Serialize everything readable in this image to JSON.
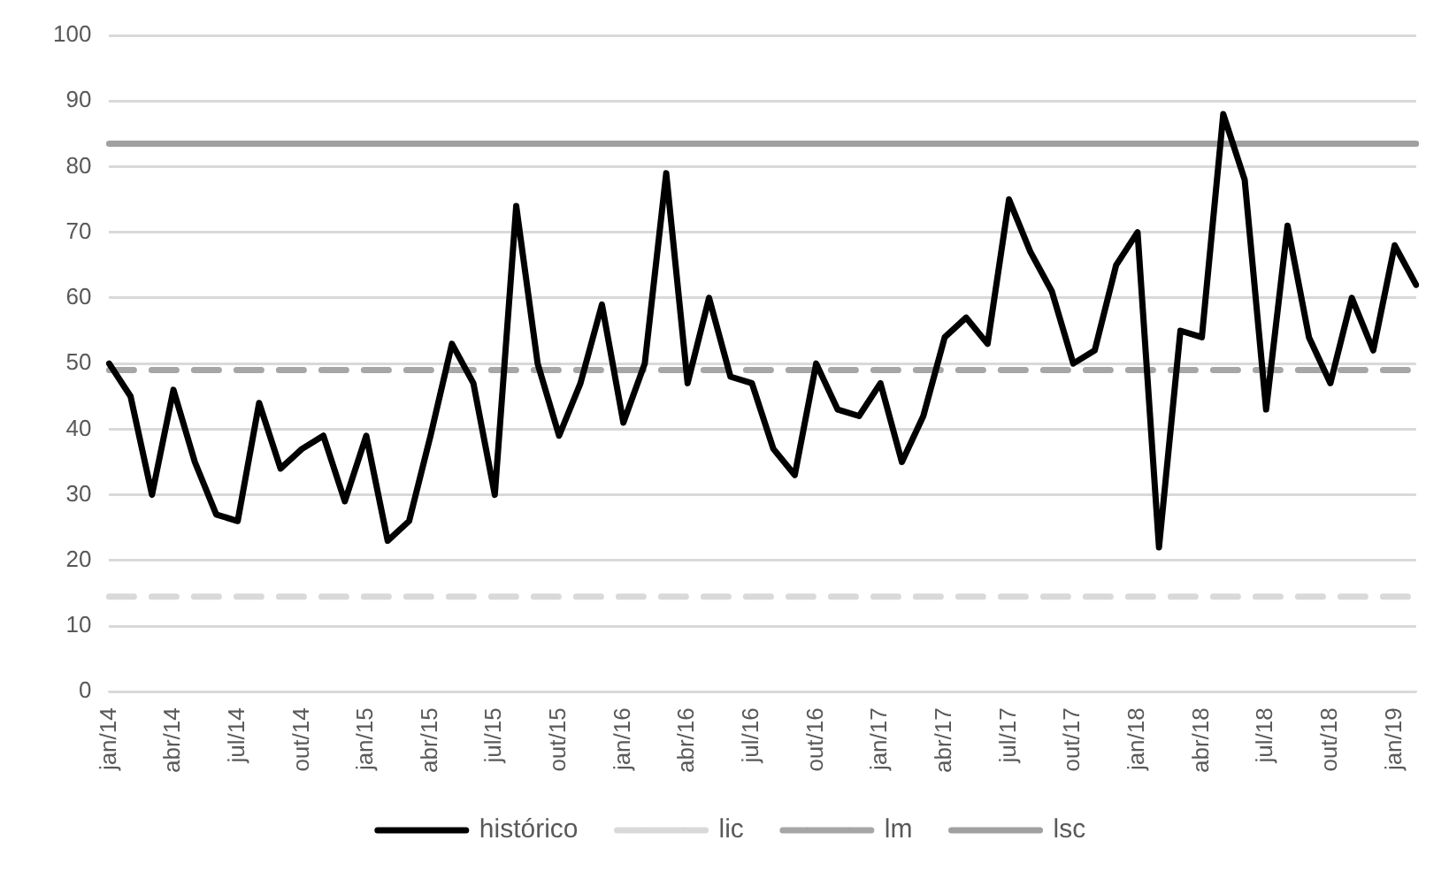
{
  "chart_data": {
    "type": "line",
    "categories": [
      "jan/14",
      null,
      null,
      "abr/14",
      null,
      null,
      "jul/14",
      null,
      null,
      "out/14",
      null,
      null,
      "jan/15",
      null,
      null,
      "abr/15",
      null,
      null,
      "jul/15",
      null,
      null,
      "out/15",
      null,
      null,
      "jan/16",
      null,
      null,
      "abr/16",
      null,
      null,
      "jul/16",
      null,
      null,
      "out/16",
      null,
      null,
      "jan/17",
      null,
      null,
      "abr/17",
      null,
      null,
      "jul/17",
      null,
      null,
      "out/17",
      null,
      null,
      "jan/18",
      null,
      null,
      "abr/18",
      null,
      null,
      "jul/18",
      null,
      null,
      "out/18",
      null,
      null,
      "jan/19",
      null
    ],
    "ylim": [
      0,
      100
    ],
    "yticks": [
      0,
      10,
      20,
      30,
      40,
      50,
      60,
      70,
      80,
      90,
      100
    ],
    "grid": "y",
    "legend": "bottom",
    "marker": "none",
    "series": [
      {
        "name": "histórico",
        "color": "#000000",
        "line_style": "solid",
        "values": [
          50,
          45,
          30,
          46,
          35,
          27,
          26,
          44,
          34,
          37,
          39,
          29,
          39,
          23,
          26,
          39,
          53,
          47,
          30,
          74,
          50,
          39,
          47,
          59,
          41,
          50,
          79,
          47,
          60,
          48,
          47,
          37,
          33,
          50,
          43,
          42,
          47,
          35,
          42,
          54,
          57,
          53,
          75,
          67,
          61,
          50,
          52,
          65,
          70,
          22,
          55,
          54,
          88,
          78,
          43,
          71,
          54,
          47,
          60,
          52,
          68,
          62
        ]
      },
      {
        "name": "lic",
        "color": "#d9d9d9",
        "line_style": "dashed",
        "values": [
          14.5,
          14.5,
          14.5,
          14.5,
          14.5,
          14.5,
          14.5,
          14.5,
          14.5,
          14.5,
          14.5,
          14.5,
          14.5,
          14.5,
          14.5,
          14.5,
          14.5,
          14.5,
          14.5,
          14.5,
          14.5,
          14.5,
          14.5,
          14.5,
          14.5,
          14.5,
          14.5,
          14.5,
          14.5,
          14.5,
          14.5,
          14.5,
          14.5,
          14.5,
          14.5,
          14.5,
          14.5,
          14.5,
          14.5,
          14.5,
          14.5,
          14.5,
          14.5,
          14.5,
          14.5,
          14.5,
          14.5,
          14.5,
          14.5,
          14.5,
          14.5,
          14.5,
          14.5,
          14.5,
          14.5,
          14.5,
          14.5,
          14.5,
          14.5,
          14.5,
          14.5,
          14.5
        ]
      },
      {
        "name": "lm",
        "color": "#a6a6a6",
        "line_style": "dashed",
        "values": [
          49,
          49,
          49,
          49,
          49,
          49,
          49,
          49,
          49,
          49,
          49,
          49,
          49,
          49,
          49,
          49,
          49,
          49,
          49,
          49,
          49,
          49,
          49,
          49,
          49,
          49,
          49,
          49,
          49,
          49,
          49,
          49,
          49,
          49,
          49,
          49,
          49,
          49,
          49,
          49,
          49,
          49,
          49,
          49,
          49,
          49,
          49,
          49,
          49,
          49,
          49,
          49,
          49,
          49,
          49,
          49,
          49,
          49,
          49,
          49,
          49,
          49
        ]
      },
      {
        "name": "lsc",
        "color": "#a0a0a0",
        "line_style": "solid",
        "values": [
          83.5,
          83.5,
          83.5,
          83.5,
          83.5,
          83.5,
          83.5,
          83.5,
          83.5,
          83.5,
          83.5,
          83.5,
          83.5,
          83.5,
          83.5,
          83.5,
          83.5,
          83.5,
          83.5,
          83.5,
          83.5,
          83.5,
          83.5,
          83.5,
          83.5,
          83.5,
          83.5,
          83.5,
          83.5,
          83.5,
          83.5,
          83.5,
          83.5,
          83.5,
          83.5,
          83.5,
          83.5,
          83.5,
          83.5,
          83.5,
          83.5,
          83.5,
          83.5,
          83.5,
          83.5,
          83.5,
          83.5,
          83.5,
          83.5,
          83.5,
          83.5,
          83.5,
          83.5,
          83.5,
          83.5,
          83.5,
          83.5,
          83.5,
          83.5,
          83.5,
          83.5,
          83.5
        ]
      }
    ]
  }
}
